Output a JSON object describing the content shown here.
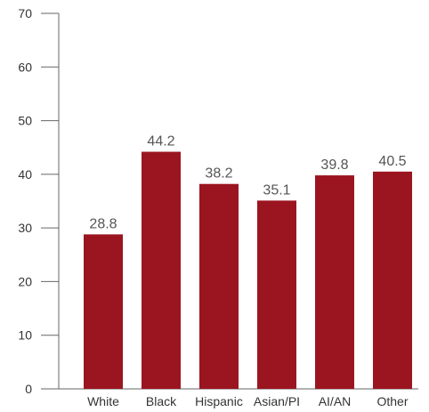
{
  "chart_data": {
    "type": "bar",
    "categories": [
      "White",
      "Black",
      "Hispanic",
      "Asian/PI",
      "AI/AN",
      "Other"
    ],
    "values": [
      28.8,
      44.2,
      38.2,
      35.1,
      39.8,
      40.5
    ],
    "value_labels": [
      "28.8",
      "44.2",
      "38.2",
      "35.1",
      "39.8",
      "40.5"
    ],
    "yticks": [
      0,
      10,
      20,
      30,
      40,
      50,
      60,
      70
    ],
    "ylim": [
      0,
      70
    ],
    "grid": false,
    "legend": "none",
    "bar_color": "#9b1520"
  }
}
